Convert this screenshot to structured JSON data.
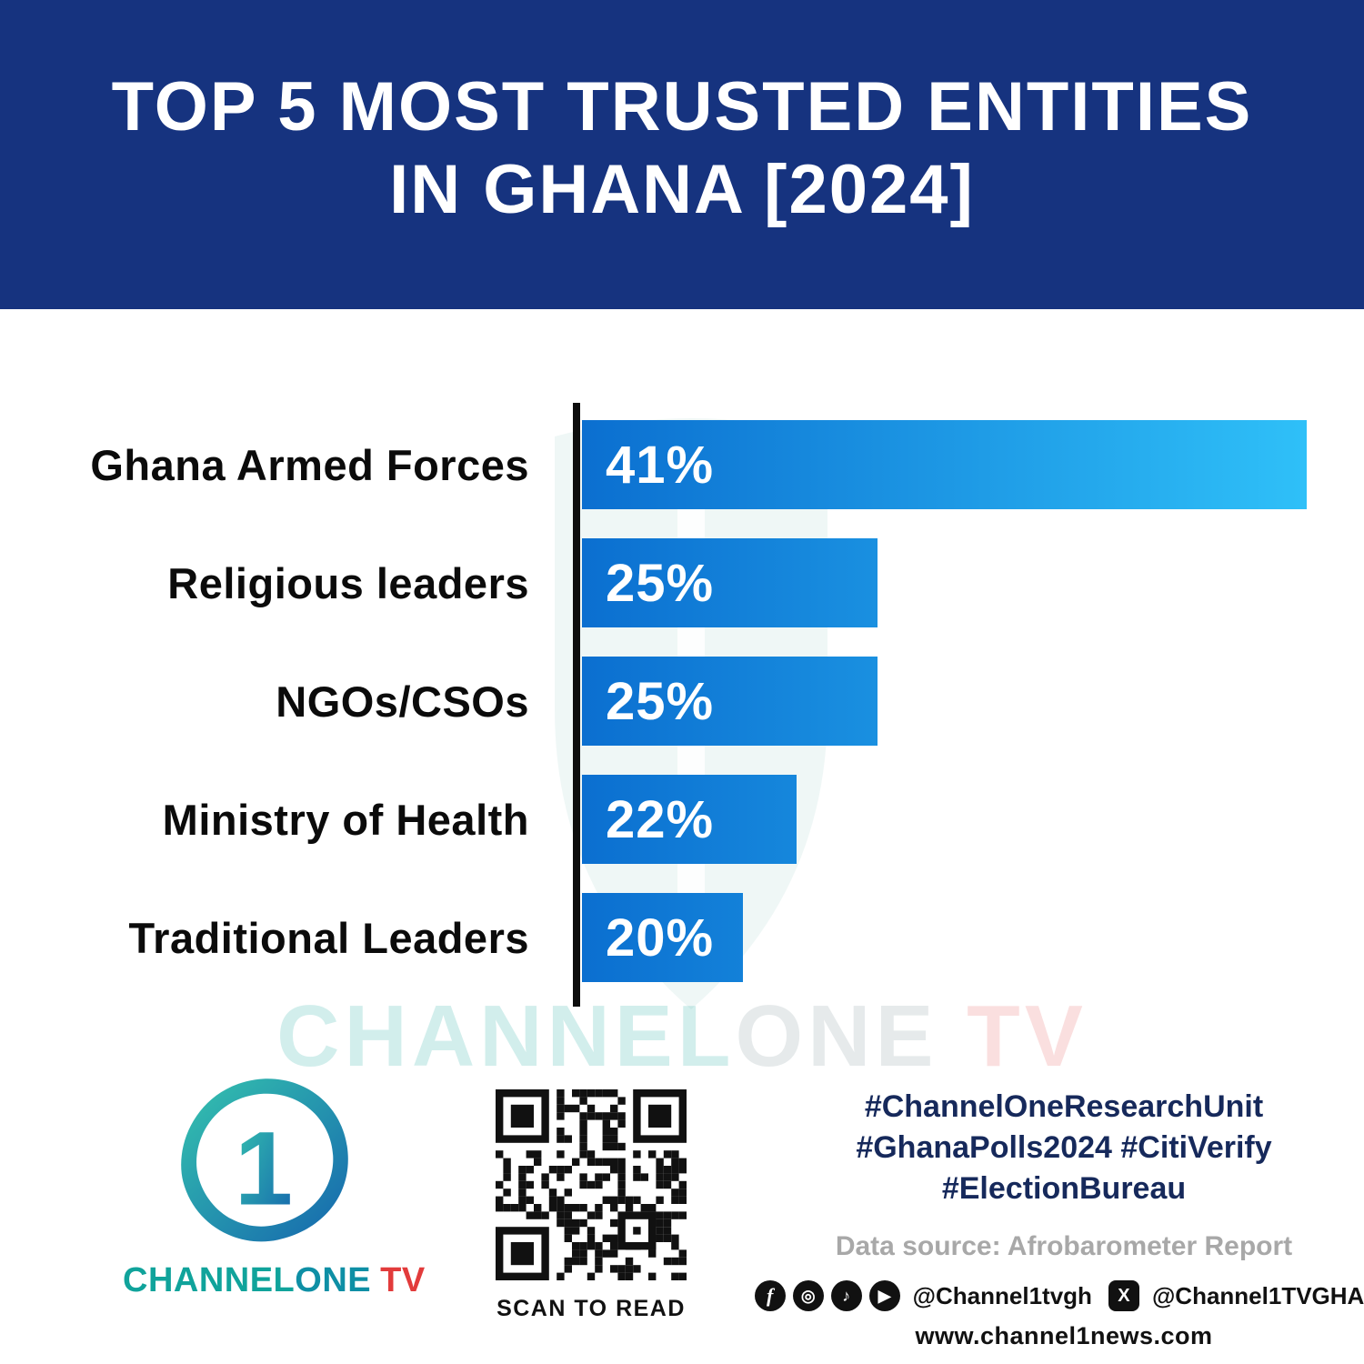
{
  "header": {
    "title_line1": "TOP 5 MOST TRUSTED ENTITIES",
    "title_line2": "IN GHANA [2024]"
  },
  "chart_data": {
    "type": "bar",
    "orientation": "horizontal",
    "title": "Top 5 Most Trusted Entities in Ghana [2024]",
    "categories": [
      "Ghana Armed Forces",
      "Religious leaders",
      "NGOs/CSOs",
      "Ministry of Health",
      "Traditional Leaders"
    ],
    "values": [
      41,
      25,
      25,
      22,
      20
    ],
    "value_labels": [
      "41%",
      "25%",
      "25%",
      "22%",
      "20%"
    ],
    "unit": "%",
    "xlim": [
      14,
      41
    ],
    "grid": false,
    "legend": false,
    "bar_gradient": [
      "#0b6fd0",
      "#2fc0f8"
    ]
  },
  "watermark": {
    "part1": "CHANNEL",
    "part2": "ONE",
    "part3": " TV"
  },
  "footer": {
    "logo": {
      "channel": "CHANNEL",
      "one": "ONE",
      "tv": "TV",
      "numeral": "1"
    },
    "qr_caption": "SCAN TO READ",
    "hashtags_line1": "#ChannelOneResearchUnit",
    "hashtags_line2": "#GhanaPolls2024 #CitiVerify",
    "hashtags_line3": "#ElectionBureau",
    "data_source": "Data source: Afrobarometer Report",
    "social_handle1": "@Channel1tvgh",
    "social_handle2": "@Channel1TVGHA",
    "website": "www.channel1news.com",
    "icons": {
      "facebook_glyph": "f",
      "instagram_glyph": "◎",
      "tiktok_glyph": "♪",
      "youtube_glyph": "▶",
      "x_glyph": "X"
    }
  }
}
